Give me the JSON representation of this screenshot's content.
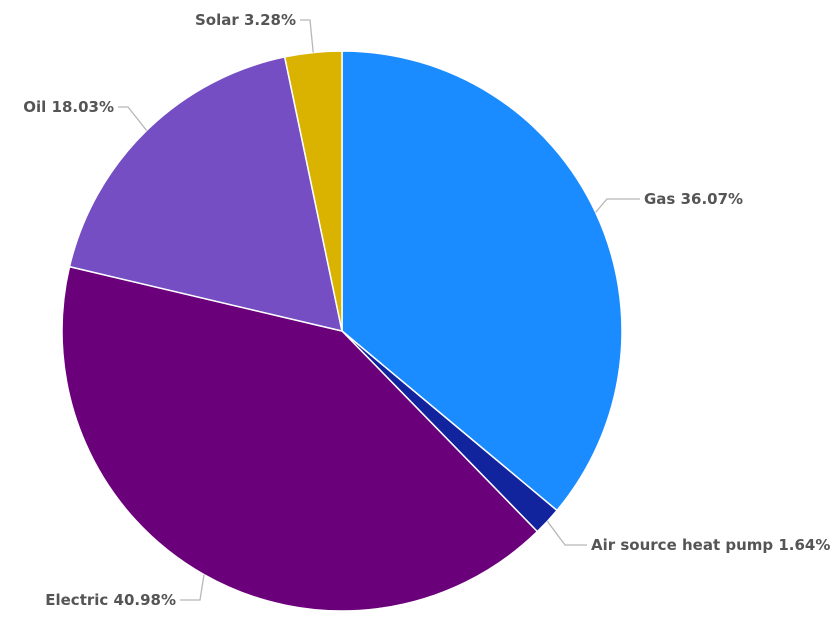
{
  "chart_data": {
    "type": "pie",
    "start_angle_deg": 0,
    "direction": "clockwise",
    "legend": "none",
    "slices": [
      {
        "label": "Gas",
        "value": 36.07,
        "display": "Gas 36.07%",
        "color": "#1a8cff"
      },
      {
        "label": "Air source heat pump",
        "value": 1.64,
        "display": "Air source heat pump 1.64%",
        "color": "#12239e"
      },
      {
        "label": "Electric",
        "value": 40.98,
        "display": "Electric 40.98%",
        "color": "#6b007b"
      },
      {
        "label": "Oil",
        "value": 18.03,
        "display": "Oil 18.03%",
        "color": "#744ec2"
      },
      {
        "label": "Solar",
        "value": 3.28,
        "display": "Solar 3.28%",
        "color": "#d9b300"
      }
    ]
  }
}
